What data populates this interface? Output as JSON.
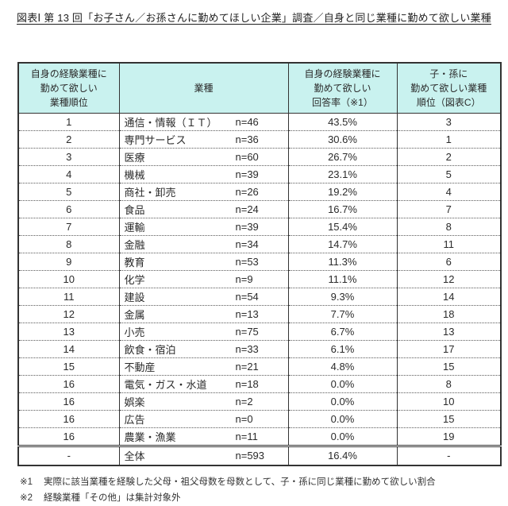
{
  "title": "図表Ⅰ 第 13 回「お子さん／お孫さんに勤めてほしい企業」調査／自身と同じ業種に勤めて欲しい業種",
  "colors": {
    "header_bg": "#c9f2ef",
    "border": "#333333",
    "dotted_divider": "#5a5a5a",
    "text": "#2b2b2b"
  },
  "table": {
    "headers": {
      "col1": "自身の経験業種に\n勤めて欲しい\n業種順位",
      "col2": "業種",
      "col3": "自身の経験業種に\n勤めて欲しい\n回答率（※1）",
      "col4": "子・孫に\n勤めて欲しい業種\n順位（図表C）"
    },
    "rows": [
      {
        "rank": "1",
        "industry": "通信・情報（ＩＴ）",
        "n": "n=46",
        "rate": "43.5%",
        "rank_c": "3"
      },
      {
        "rank": "2",
        "industry": "専門サービス",
        "n": "n=36",
        "rate": "30.6%",
        "rank_c": "1"
      },
      {
        "rank": "3",
        "industry": "医療",
        "n": "n=60",
        "rate": "26.7%",
        "rank_c": "2"
      },
      {
        "rank": "4",
        "industry": "機械",
        "n": "n=39",
        "rate": "23.1%",
        "rank_c": "5"
      },
      {
        "rank": "5",
        "industry": "商社・卸売",
        "n": "n=26",
        "rate": "19.2%",
        "rank_c": "4"
      },
      {
        "rank": "6",
        "industry": "食品",
        "n": "n=24",
        "rate": "16.7%",
        "rank_c": "7"
      },
      {
        "rank": "7",
        "industry": "運輸",
        "n": "n=39",
        "rate": "15.4%",
        "rank_c": "8"
      },
      {
        "rank": "8",
        "industry": "金融",
        "n": "n=34",
        "rate": "14.7%",
        "rank_c": "11"
      },
      {
        "rank": "9",
        "industry": "教育",
        "n": "n=53",
        "rate": "11.3%",
        "rank_c": "6"
      },
      {
        "rank": "10",
        "industry": "化学",
        "n": "n=9",
        "rate": "11.1%",
        "rank_c": "12"
      },
      {
        "rank": "11",
        "industry": "建設",
        "n": "n=54",
        "rate": "9.3%",
        "rank_c": "14"
      },
      {
        "rank": "12",
        "industry": "金属",
        "n": "n=13",
        "rate": "7.7%",
        "rank_c": "18"
      },
      {
        "rank": "13",
        "industry": "小売",
        "n": "n=75",
        "rate": "6.7%",
        "rank_c": "13"
      },
      {
        "rank": "14",
        "industry": "飲食・宿泊",
        "n": "n=33",
        "rate": "6.1%",
        "rank_c": "17"
      },
      {
        "rank": "15",
        "industry": "不動産",
        "n": "n=21",
        "rate": "4.8%",
        "rank_c": "15"
      },
      {
        "rank": "16",
        "industry": "電気・ガス・水道",
        "n": "n=18",
        "rate": "0.0%",
        "rank_c": "8"
      },
      {
        "rank": "16",
        "industry": "娯楽",
        "n": "n=2",
        "rate": "0.0%",
        "rank_c": "10"
      },
      {
        "rank": "16",
        "industry": "広告",
        "n": "n=0",
        "rate": "0.0%",
        "rank_c": "15"
      },
      {
        "rank": "16",
        "industry": "農業・漁業",
        "n": "n=11",
        "rate": "0.0%",
        "rank_c": "19"
      }
    ],
    "total": {
      "rank": "-",
      "industry": "全体",
      "n": "n=593",
      "rate": "16.4%",
      "rank_c": "-"
    }
  },
  "footnotes": [
    {
      "marker": "※1",
      "text": "実際に該当業種を経験した父母・祖父母数を母数として、子・孫に同じ業種に勤めて欲しい割合"
    },
    {
      "marker": "※2",
      "text": "経験業種「その他」は集計対象外"
    }
  ]
}
